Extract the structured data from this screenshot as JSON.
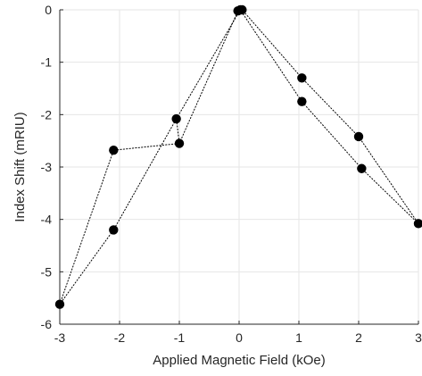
{
  "chart_data": {
    "type": "scatter",
    "title": "",
    "xlabel": "Applied Magnetic Field (kOe)",
    "ylabel": "Index Shift (mRIU)",
    "xlim": [
      -3,
      3
    ],
    "ylim": [
      -6,
      0
    ],
    "xticks": [
      -3,
      -2,
      -1,
      0,
      1,
      2,
      3
    ],
    "yticks": [
      0,
      -1,
      -2,
      -3,
      -4,
      -5,
      -6
    ],
    "xtick_labels": [
      "-3",
      "-2",
      "-1",
      "0",
      "1",
      "2",
      "3"
    ],
    "ytick_labels": [
      "0",
      "-1",
      "-2",
      "-3",
      "-4",
      "-5",
      "-6"
    ],
    "grid": true,
    "legend": "none",
    "series": [
      {
        "marker_color": "#000000",
        "line_style": "dotted",
        "points": [
          {
            "x": -3.0,
            "y": -5.62
          },
          {
            "x": -2.1,
            "y": -2.68
          },
          {
            "x": -1.0,
            "y": -2.55
          },
          {
            "x": -1.05,
            "y": -2.08
          },
          {
            "x": -2.1,
            "y": -4.2
          },
          {
            "x": -3.0,
            "y": -5.62
          }
        ]
      },
      {
        "marker_color": "#000000",
        "line_style": "dotted",
        "points": [
          {
            "x": -0.02,
            "y": -0.02
          },
          {
            "x": 0.05,
            "y": 0.0
          },
          {
            "x": 1.05,
            "y": -1.3
          },
          {
            "x": 2.0,
            "y": -2.42
          },
          {
            "x": 3.0,
            "y": -4.08
          },
          {
            "x": 2.05,
            "y": -3.03
          },
          {
            "x": 1.05,
            "y": -1.75
          },
          {
            "x": 0.02,
            "y": 0.0
          }
        ]
      },
      {
        "marker_color": "#000000",
        "line_style": "dotted",
        "points": [
          {
            "x": -1.0,
            "y": -2.55
          },
          {
            "x": -0.02,
            "y": -0.02
          }
        ]
      },
      {
        "marker_color": "#000000",
        "line_style": "dotted",
        "points": [
          {
            "x": -1.05,
            "y": -2.08
          },
          {
            "x": 0.02,
            "y": 0.0
          }
        ]
      }
    ]
  }
}
